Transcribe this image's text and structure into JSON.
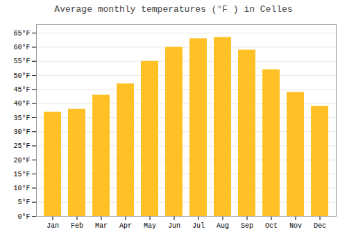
{
  "chart_data": {
    "type": "bar",
    "title": "Average monthly temperatures (°F ) in Celles",
    "categories": [
      "Jan",
      "Feb",
      "Mar",
      "Apr",
      "May",
      "Jun",
      "Jul",
      "Aug",
      "Sep",
      "Oct",
      "Nov",
      "Dec"
    ],
    "values": [
      37,
      38,
      43,
      47,
      55,
      60,
      63,
      63.5,
      59,
      52,
      44,
      39
    ],
    "color": "#FFC125",
    "ylim": [
      0,
      68
    ],
    "yticks": [
      {
        "value": 0,
        "label": "0°F"
      },
      {
        "value": 5,
        "label": "5°F"
      },
      {
        "value": 10,
        "label": "10°F"
      },
      {
        "value": 15,
        "label": "15°F"
      },
      {
        "value": 20,
        "label": "20°F"
      },
      {
        "value": 25,
        "label": "25°F"
      },
      {
        "value": 30,
        "label": "30°F"
      },
      {
        "value": 35,
        "label": "35°F"
      },
      {
        "value": 40,
        "label": "40°F"
      },
      {
        "value": 45,
        "label": "45°F"
      },
      {
        "value": 50,
        "label": "50°F"
      },
      {
        "value": 55,
        "label": "55°F"
      },
      {
        "value": 60,
        "label": "60°F"
      },
      {
        "value": 65,
        "label": "65°F"
      }
    ],
    "grid": true
  }
}
